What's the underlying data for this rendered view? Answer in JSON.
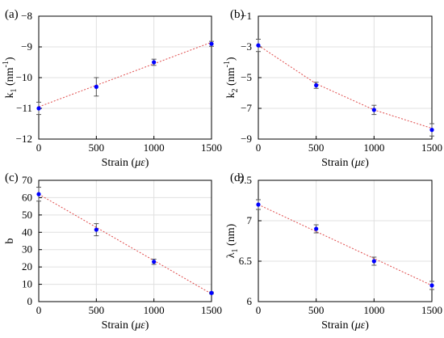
{
  "chart_data": [
    {
      "panel_label": "(a)",
      "type": "scatter",
      "xlabel_main": "Strain (",
      "xlabel_mu": "με",
      "xlabel_close": ")",
      "ylabel_main": "k",
      "ylabel_sub": "1",
      "ylabel_unit": " (nm",
      "ylabel_exp": "-1",
      "ylabel_close": ")",
      "xlim": [
        0,
        1500
      ],
      "ylim": [
        -12,
        -8
      ],
      "xticks": [
        0,
        500,
        1000,
        1500
      ],
      "yticks": [
        -12,
        -11,
        -10,
        -9,
        -8
      ],
      "x": [
        0,
        500,
        1000,
        1500
      ],
      "y": [
        -11.0,
        -10.3,
        -9.5,
        -8.9
      ],
      "err": [
        0.2,
        0.3,
        0.1,
        0.08
      ],
      "fit": [
        [
          0,
          -10.95
        ],
        [
          1500,
          -8.85
        ]
      ],
      "grid": true
    },
    {
      "panel_label": "(b)",
      "type": "scatter",
      "xlabel_main": "Strain (",
      "xlabel_mu": "με",
      "xlabel_close": ")",
      "ylabel_main": "k",
      "ylabel_sub": "2",
      "ylabel_unit": " (nm",
      "ylabel_exp": "-1",
      "ylabel_close": ")",
      "xlim": [
        0,
        1500
      ],
      "ylim": [
        -9,
        -1
      ],
      "xticks": [
        0,
        500,
        1000,
        1500
      ],
      "yticks": [
        -9,
        -7,
        -5,
        -3,
        -1
      ],
      "x": [
        0,
        500,
        1000,
        1500
      ],
      "y": [
        -2.9,
        -5.5,
        -7.1,
        -8.4
      ],
      "err": [
        0.4,
        0.2,
        0.3,
        0.4
      ],
      "fit": [
        [
          0,
          -2.9
        ],
        [
          500,
          -5.4
        ],
        [
          1000,
          -7.1
        ],
        [
          1500,
          -8.3
        ]
      ],
      "grid": true
    },
    {
      "panel_label": "(c)",
      "type": "scatter",
      "xlabel_main": "Strain (",
      "xlabel_mu": "με",
      "xlabel_close": ")",
      "ylabel_main": "b",
      "ylabel_sub": "",
      "ylabel_unit": "",
      "ylabel_exp": "",
      "ylabel_close": "",
      "xlim": [
        0,
        1500
      ],
      "ylim": [
        0,
        70
      ],
      "xticks": [
        0,
        500,
        1000,
        1500
      ],
      "yticks": [
        0,
        10,
        20,
        30,
        40,
        50,
        60,
        70
      ],
      "x": [
        0,
        500,
        1000,
        1500
      ],
      "y": [
        62,
        41.5,
        23,
        5
      ],
      "err": [
        4,
        3.5,
        1.5,
        0.5
      ],
      "fit": [
        [
          0,
          62
        ],
        [
          1500,
          4.5
        ]
      ],
      "grid": true
    },
    {
      "panel_label": "(d)",
      "type": "scatter",
      "xlabel_main": "Strain (",
      "xlabel_mu": "με",
      "xlabel_close": ")",
      "ylabel_main": "λ",
      "ylabel_sub": "1",
      "ylabel_unit": " (nm)",
      "ylabel_exp": "",
      "ylabel_close": "",
      "xlim": [
        0,
        1500
      ],
      "ylim": [
        6,
        7.5
      ],
      "xticks": [
        0,
        500,
        1000,
        1500
      ],
      "yticks": [
        6,
        6.5,
        7,
        7.5
      ],
      "x": [
        0,
        500,
        1000,
        1500
      ],
      "y": [
        7.2,
        6.9,
        6.5,
        6.2
      ],
      "err": [
        0.06,
        0.05,
        0.05,
        0.05
      ],
      "fit": [
        [
          0,
          7.2
        ],
        [
          1500,
          6.2
        ]
      ],
      "grid": true
    }
  ],
  "colors": {
    "marker": "#0000ff",
    "fit_line": "#e04c4c",
    "error_bar": "#555555",
    "grid": "#e0e0e0",
    "axes": "#000000"
  }
}
